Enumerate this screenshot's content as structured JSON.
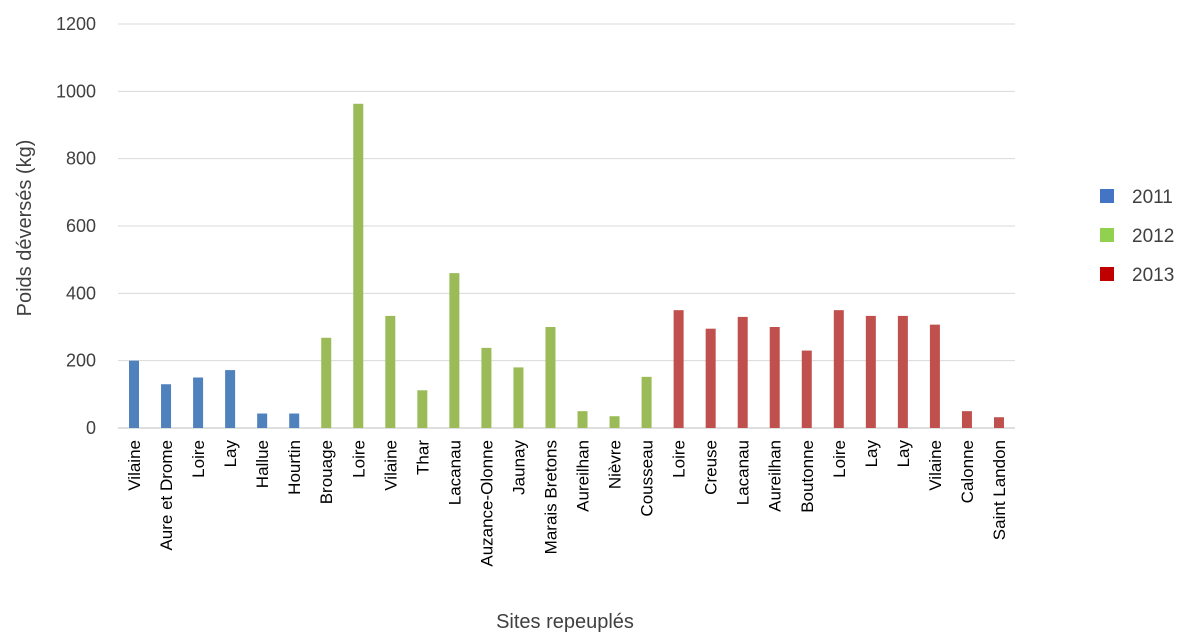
{
  "chart_data": {
    "type": "bar",
    "title": "",
    "xlabel": "Sites repeuplés",
    "ylabel": "Poids déversés (kg)",
    "ylim": [
      0,
      1200
    ],
    "yticks": [
      0,
      200,
      400,
      600,
      800,
      1000,
      1200
    ],
    "grid": true,
    "legend_position": "right",
    "categories": [
      "Vilaine",
      "Aure et Drome",
      "Loire",
      "Lay",
      "Hallue",
      "Hourtin",
      "Brouage",
      "Loire",
      "Vilaine",
      "Thar",
      "Lacanau",
      "Auzance-Olonne",
      "Jaunay",
      "Marais Bretons",
      "Aureilhan",
      "Nièvre",
      "Cousseau",
      "Loire",
      "Creuse",
      "Lacanau",
      "Aureilhan",
      "Boutonne",
      "Loire",
      "Lay",
      "Lay",
      "Vilaine",
      "Calonne",
      "Saint Landon"
    ],
    "values": [
      200,
      130,
      150,
      172,
      43,
      43,
      268,
      963,
      333,
      112,
      460,
      238,
      180,
      300,
      50,
      35,
      152,
      350,
      295,
      330,
      300,
      230,
      350,
      333,
      333,
      307,
      50,
      32
    ],
    "year_groups": [
      "2011",
      "2011",
      "2011",
      "2011",
      "2011",
      "2011",
      "2012",
      "2012",
      "2012",
      "2012",
      "2012",
      "2012",
      "2012",
      "2012",
      "2012",
      "2012",
      "2012",
      "2013",
      "2013",
      "2013",
      "2013",
      "2013",
      "2013",
      "2013",
      "2013",
      "2013",
      "2013",
      "2013"
    ],
    "bar_colors": {
      "2011": "#4f81bd",
      "2012": "#9bbb59",
      "2013": "#c0504d"
    },
    "legend": [
      {
        "name": "2011",
        "color": "#4474c4"
      },
      {
        "name": "2012",
        "color": "#92d050"
      },
      {
        "name": "2013",
        "color": "#c00000"
      }
    ]
  }
}
